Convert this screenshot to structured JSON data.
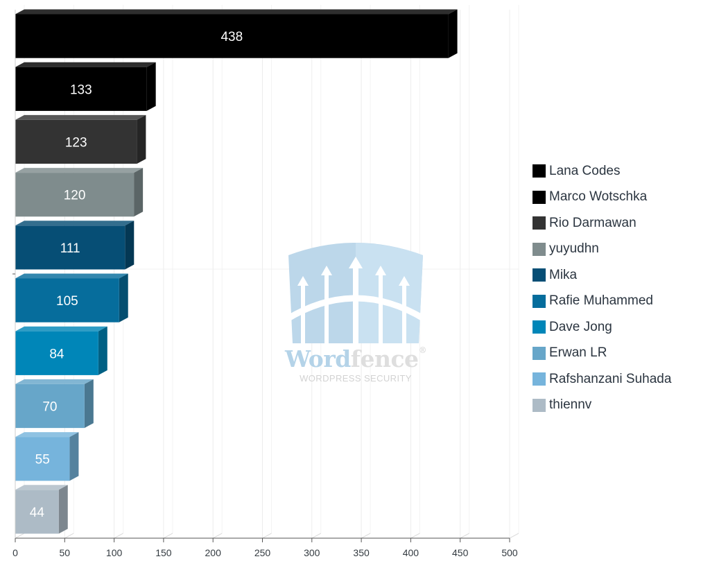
{
  "chart_data": {
    "type": "bar",
    "orientation": "horizontal",
    "categories": [
      "Lana Codes",
      "Marco Wotschka",
      "Rio Darmawan",
      "yuyudhn",
      "Mika",
      "Rafie Muhammed",
      "Dave Jong",
      "Erwan LR",
      "Rafshanzani Suhada",
      "thiennv"
    ],
    "values": [
      438,
      133,
      123,
      120,
      111,
      105,
      84,
      70,
      55,
      44
    ],
    "colors": [
      "#000000",
      "#000000",
      "#333333",
      "#7f8c8d",
      "#064e75",
      "#066d9c",
      "#0086b8",
      "#67a6c9",
      "#76b4dc",
      "#adbbc6"
    ],
    "xlim": [
      0,
      500
    ],
    "xticks": [
      0,
      50,
      100,
      150,
      200,
      250,
      300,
      350,
      400,
      450,
      500
    ],
    "grid": true,
    "legend_position": "right",
    "data_labels": true
  },
  "watermark": {
    "brand_part1": "Word",
    "brand_part2": "fence",
    "registered": "®",
    "tagline": "WORDPRESS SECURITY"
  }
}
